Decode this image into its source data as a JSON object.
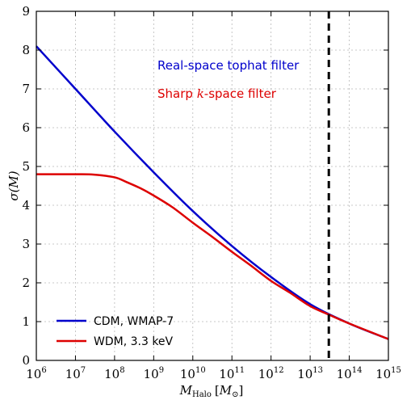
{
  "chart_data": {
    "type": "line",
    "xscale": "log",
    "xlim": [
      1000000.0,
      1000000000000000.0
    ],
    "ylim": [
      0,
      9
    ],
    "grid": true,
    "xlabel_main": "M",
    "xlabel_sub": "Halo",
    "xlabel_bracket_open": "[",
    "xlabel_unit": "M",
    "xlabel_unit_sub": "⊙",
    "xlabel_bracket_close": "]",
    "ylabel": "σ(M)",
    "x_tick_labels": [
      {
        "base": "10",
        "exp": "6"
      },
      {
        "base": "10",
        "exp": "7"
      },
      {
        "base": "10",
        "exp": "8"
      },
      {
        "base": "10",
        "exp": "9"
      },
      {
        "base": "10",
        "exp": "10"
      },
      {
        "base": "10",
        "exp": "11"
      },
      {
        "base": "10",
        "exp": "12"
      },
      {
        "base": "10",
        "exp": "13"
      },
      {
        "base": "10",
        "exp": "14"
      },
      {
        "base": "10",
        "exp": "15"
      }
    ],
    "y_ticks": [
      0,
      1,
      2,
      3,
      4,
      5,
      6,
      7,
      8,
      9
    ],
    "series": [
      {
        "name": "CDM, WMAP-7",
        "color": "#0000cc",
        "x": [
          1000000.0,
          10000000.0,
          100000000.0,
          1000000000.0,
          10000000000.0,
          100000000000.0,
          1000000000000.0,
          10000000000000.0,
          100000000000000.0,
          1000000000000000.0
        ],
        "y": [
          8.1,
          7.0,
          5.9,
          4.85,
          3.85,
          2.95,
          2.15,
          1.45,
          0.95,
          0.55
        ]
      },
      {
        "name": "WDM, 3.3 keV",
        "color": "#dd0000",
        "x": [
          1000000.0,
          10000000.0,
          30000000.0,
          100000000.0,
          200000000.0,
          500000000.0,
          1000000000.0,
          3000000000.0,
          10000000000.0,
          30000000000.0,
          100000000000.0,
          300000000000.0,
          1000000000000.0,
          3000000000000.0,
          10000000000000.0,
          30000000000000.0,
          100000000000000.0,
          1000000000000000.0
        ],
        "y": [
          4.8,
          4.8,
          4.79,
          4.72,
          4.6,
          4.42,
          4.25,
          3.95,
          3.55,
          3.2,
          2.8,
          2.45,
          2.05,
          1.75,
          1.4,
          1.18,
          0.95,
          0.55
        ]
      }
    ],
    "vline": {
      "x": 30000000000000.0,
      "style": "dashed",
      "color": "#000000"
    },
    "annotations": [
      {
        "text": "Real-space tophat filter",
        "color": "#0000cc"
      },
      {
        "text_prefix": "Sharp ",
        "text_var": "k",
        "text_suffix": "-space filter",
        "color": "#dd0000"
      }
    ],
    "legend_position": "lower-left"
  }
}
